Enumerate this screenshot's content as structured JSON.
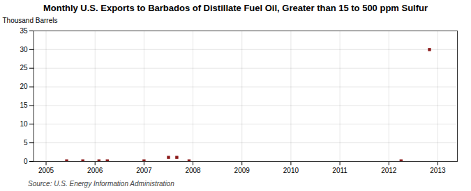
{
  "chart_data": {
    "type": "scatter",
    "title": "Monthly U.S. Exports to Barbados of Distillate Fuel Oil, Greater than 15 to 500 ppm Sulfur",
    "y_label": "Thousand Barrels",
    "source": "Source: U.S. Energy Information Administration",
    "x": [
      2005.42,
      2005.75,
      2006.08,
      2006.25,
      2007.0,
      2007.5,
      2007.67,
      2007.92,
      2012.25,
      2012.83
    ],
    "values": [
      0.15,
      0.15,
      0.15,
      0.15,
      0.15,
      1.1,
      1.1,
      0.15,
      0.15,
      30.0
    ],
    "color": "#8b1a1a",
    "marker": "square",
    "xlim": [
      2004.75,
      2013.4
    ],
    "ylim": [
      0,
      35
    ],
    "xticks": [
      2005,
      2006,
      2007,
      2008,
      2009,
      2010,
      2011,
      2012,
      2013
    ],
    "yticks": [
      0,
      5,
      10,
      15,
      20,
      25,
      30,
      35
    ],
    "grid": true
  }
}
